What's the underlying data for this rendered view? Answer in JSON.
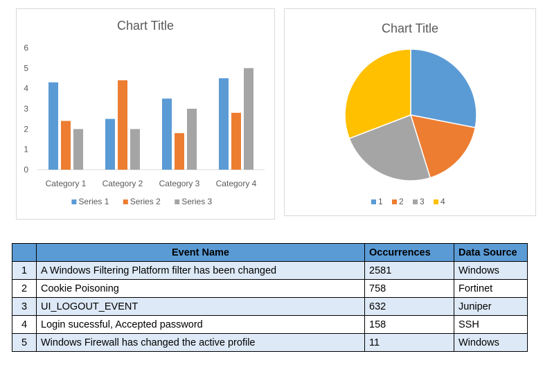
{
  "chart_data": [
    {
      "type": "bar",
      "title": "Chart Title",
      "categories": [
        "Category 1",
        "Category 2",
        "Category 3",
        "Category 4"
      ],
      "series": [
        {
          "name": "Series 1",
          "values": [
            4.3,
            2.5,
            3.5,
            4.5
          ],
          "color": "#5b9bd5"
        },
        {
          "name": "Series 2",
          "values": [
            2.4,
            4.4,
            1.8,
            2.8
          ],
          "color": "#ed7d31"
        },
        {
          "name": "Series 3",
          "values": [
            2,
            2,
            3,
            5
          ],
          "color": "#a5a5a5"
        }
      ],
      "ylim": [
        0,
        6
      ],
      "yticks": [
        "0",
        "1",
        "2",
        "3",
        "4",
        "5",
        "6"
      ],
      "grid": false,
      "legend": "bottom"
    },
    {
      "type": "pie",
      "title": "Chart Title",
      "labels": [
        "1",
        "2",
        "3",
        "4"
      ],
      "values": [
        8.2,
        5.0,
        7.0,
        9.0
      ],
      "colors": [
        "#5b9bd5",
        "#ed7d31",
        "#a5a5a5",
        "#ffc000"
      ],
      "legend": "bottom"
    }
  ],
  "table": {
    "headers": [
      "",
      "Event Name",
      "Occurrences",
      "Data Source"
    ],
    "rows": [
      [
        "1",
        "A Windows Filtering Platform filter has been changed",
        "2581",
        "Windows"
      ],
      [
        "2",
        "Cookie Poisoning",
        "758",
        "Fortinet"
      ],
      [
        "3",
        "UI_LOGOUT_EVENT",
        "632",
        "Juniper"
      ],
      [
        "4",
        "Login sucessful, Accepted password",
        "158",
        "SSH"
      ],
      [
        "5",
        "Windows Firewall has changed the active profile",
        "11",
        "Windows"
      ]
    ]
  }
}
